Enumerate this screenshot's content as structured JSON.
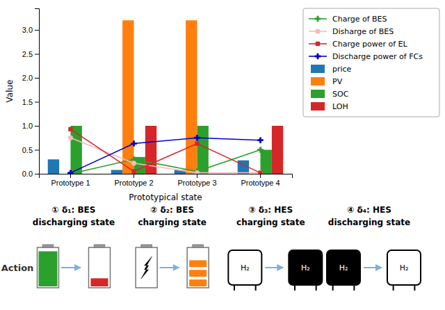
{
  "chart_data": {
    "type": "bar",
    "categories": [
      "Prototype 1",
      "Prototype 2",
      "Prototype 3",
      "Prototype 4"
    ],
    "series": [
      {
        "name": "price",
        "type": "bar",
        "color": "#1f77b4",
        "values": [
          0.3,
          0.08,
          0.08,
          0.28
        ]
      },
      {
        "name": "PV",
        "type": "bar",
        "color": "#ff7f0e",
        "values": [
          0.0,
          3.2,
          3.2,
          0.0
        ]
      },
      {
        "name": "SOC",
        "type": "bar",
        "color": "#2ca02c",
        "values": [
          1.0,
          0.35,
          1.0,
          0.5
        ]
      },
      {
        "name": "LOH",
        "type": "bar",
        "color": "#d62728",
        "values": [
          0.0,
          1.0,
          0.0,
          1.0
        ]
      },
      {
        "name": "Charge of BES",
        "type": "line",
        "color": "#2ca02c",
        "marker": "plus",
        "values": [
          0.0,
          0.3,
          0.05,
          0.5
        ]
      },
      {
        "name": "Disharge of BES",
        "type": "line",
        "color": "#ffb6c1",
        "marker": "circle",
        "values": [
          0.75,
          0.22,
          0.02,
          0.02
        ]
      },
      {
        "name": "Charge power of EL",
        "type": "line",
        "color": "#d62728",
        "marker": "square",
        "values": [
          0.93,
          0.05,
          0.63,
          0.02
        ]
      },
      {
        "name": "Discharge power of FCs",
        "type": "line",
        "color": "#0000cd",
        "marker": "plus",
        "values": [
          0.02,
          0.63,
          0.75,
          0.7
        ]
      }
    ],
    "ylim": [
      0.0,
      3.45
    ],
    "yticks": [
      {
        "value": 0.0,
        "label": "0.0"
      },
      0.5,
      {
        "value": 1.0,
        "label": "1.0"
      },
      1.5,
      {
        "value": 2.0,
        "label": "2.0"
      },
      2.5,
      {
        "value": 3.0,
        "label": "3.0"
      }
    ],
    "ylabel": "Value",
    "xlabel": "Prototypical state",
    "legend": "right",
    "grid": false,
    "annotations": [
      "① δ₁: BES",
      "discharging state",
      "② δ₂: BES",
      "charging state",
      "③ δ₃: HES",
      "charging state",
      "④ δ₄: HES",
      "discharging state",
      "Action",
      "H₂",
      "H₂",
      "H₂",
      "H₂"
    ]
  }
}
